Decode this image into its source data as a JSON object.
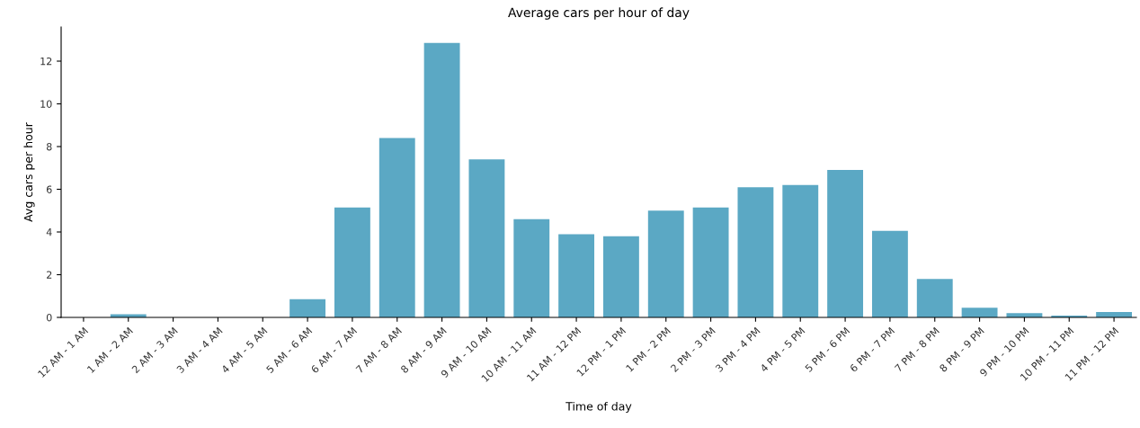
{
  "chart_data": {
    "type": "bar",
    "title": "Average cars per hour of day",
    "xlabel": "Time of day",
    "ylabel": "Avg cars per hour",
    "categories": [
      "12 AM - 1 AM",
      "1 AM - 2 AM",
      "2 AM - 3 AM",
      "3 AM - 4 AM",
      "4 AM - 5 AM",
      "5 AM - 6 AM",
      "6 AM - 7 AM",
      "7 AM - 8 AM",
      "8 AM - 9 AM",
      "9 AM - 10 AM",
      "10 AM - 11 AM",
      "11 AM - 12 PM",
      "12 PM - 1 PM",
      "1 PM - 2 PM",
      "2 PM - 3 PM",
      "3 PM - 4 PM",
      "4 PM - 5 PM",
      "5 PM - 6 PM",
      "6 PM - 7 PM",
      "7 PM - 8 PM",
      "8 PM - 9 PM",
      "9 PM - 10 PM",
      "10 PM - 11 PM",
      "11 PM - 12 PM"
    ],
    "values": [
      0,
      0.15,
      0,
      0,
      0,
      0.85,
      5.15,
      8.4,
      12.85,
      7.4,
      4.6,
      3.9,
      3.8,
      5.0,
      5.15,
      6.1,
      6.2,
      6.9,
      4.05,
      1.8,
      0.45,
      0.2,
      0.08,
      0.25
    ],
    "color": "#5ba8c4",
    "ylim": [
      0,
      13.6
    ],
    "yticks": [
      0,
      2,
      4,
      6,
      8,
      10,
      12
    ],
    "grid": false
  }
}
